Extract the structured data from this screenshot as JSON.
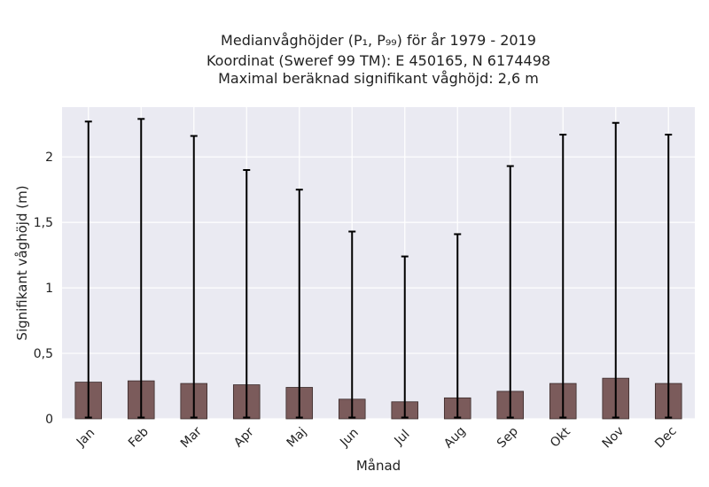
{
  "chart_data": {
    "type": "bar",
    "title_lines": [
      "Medianvåghöjder (P₁, P₉₉) för år 1979 - 2019",
      "Koordinat (Sweref 99 TM): E 450165, N 6174498",
      "Maximal beräknad signifikant våghöjd: 2,6 m"
    ],
    "xlabel": "Månad",
    "ylabel": "Signifikant våghöjd (m)",
    "categories": [
      "Jan",
      "Feb",
      "Mar",
      "Apr",
      "Maj",
      "Jun",
      "Jul",
      "Aug",
      "Sep",
      "Okt",
      "Nov",
      "Dec"
    ],
    "series": [
      {
        "values": [
          0.28,
          0.29,
          0.27,
          0.26,
          0.24,
          0.15,
          0.13,
          0.16,
          0.21,
          0.27,
          0.31,
          0.27
        ],
        "err_low": [
          0.01,
          0.01,
          0.01,
          0.01,
          0.01,
          0.01,
          0.01,
          0.01,
          0.01,
          0.01,
          0.01,
          0.01
        ],
        "err_high": [
          2.27,
          2.29,
          2.16,
          1.9,
          1.75,
          1.43,
          1.24,
          1.41,
          1.93,
          2.17,
          2.26,
          2.17
        ]
      }
    ],
    "ylim": [
      0,
      2.38
    ],
    "yticks": [
      0,
      0.5,
      1,
      1.5,
      2
    ],
    "ytick_labels": [
      "0",
      "0,5",
      "1",
      "1,5",
      "2"
    ],
    "grid": true,
    "colors": {
      "bar_fill": "#7b5b5b",
      "bar_edge": "#3a2a2a",
      "errorbar": "#000000",
      "plot_background": "#eaeaf2",
      "grid": "#ffffff"
    }
  }
}
